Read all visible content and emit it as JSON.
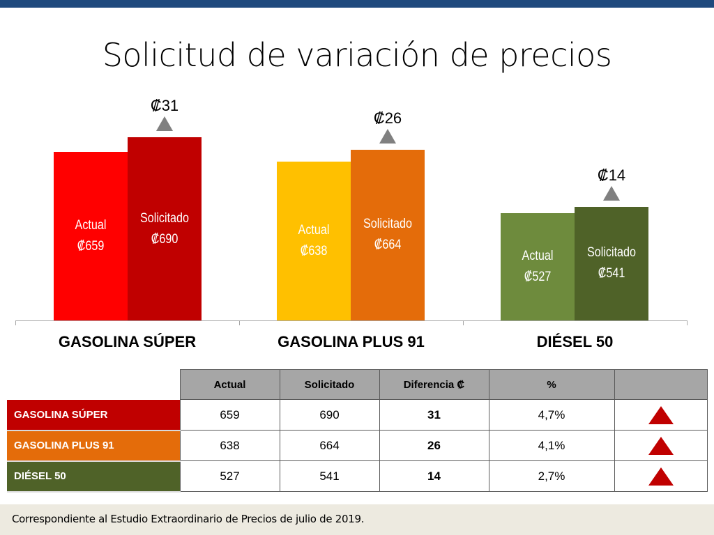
{
  "title": "Solicitud de variación de precios",
  "chart_data": {
    "type": "bar",
    "categories": [
      "GASOLINA SÚPER",
      "GASOLINA PLUS 91",
      "DIÉSEL 50"
    ],
    "series": [
      {
        "name": "Actual",
        "values": [
          659,
          638,
          527
        ],
        "colors": [
          "#ff0000",
          "#ffc000",
          "#6e8b3d"
        ]
      },
      {
        "name": "Solicitado",
        "values": [
          690,
          664,
          541
        ],
        "colors": [
          "#c00000",
          "#e46c0a",
          "#4f6228"
        ]
      }
    ],
    "differences": [
      31,
      26,
      14
    ],
    "currency": "₡",
    "ylim": [
      296,
      710
    ],
    "grid": false,
    "legend": "none"
  },
  "table": {
    "headers": [
      "Actual",
      "Solicitado",
      "Diferencia ₡",
      "%",
      ""
    ],
    "rows": [
      {
        "label": "GASOLINA SÚPER",
        "color": "#c00000",
        "actual": "659",
        "solicitado": "690",
        "diferencia": "31",
        "pct": "4,7%",
        "trend": "up-triangle-icon"
      },
      {
        "label": "GASOLINA PLUS 91",
        "color": "#e46c0a",
        "actual": "638",
        "solicitado": "664",
        "diferencia": "26",
        "pct": "4,1%",
        "trend": "up-triangle-icon"
      },
      {
        "label": "DIÉSEL 50",
        "color": "#4f6228",
        "actual": "527",
        "solicitado": "541",
        "diferencia": "14",
        "pct": "2,7%",
        "trend": "up-triangle-icon"
      }
    ]
  },
  "footer": "Correspondiente al Estudio Extraordinario de Precios de julio de 2019."
}
